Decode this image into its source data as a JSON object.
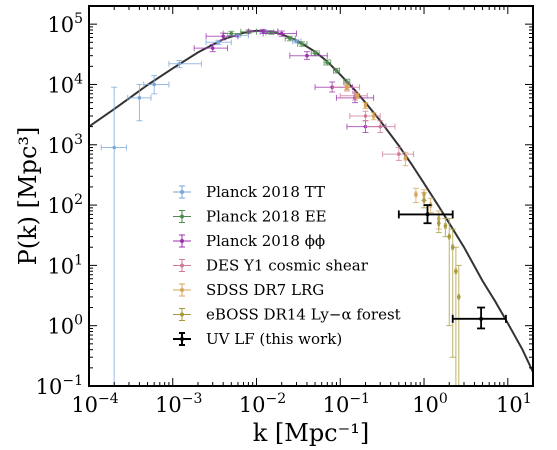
{
  "chart_data": {
    "type": "scatter",
    "xscale": "log",
    "yscale": "log",
    "xlabel": "k [Mpc⁻¹]",
    "ylabel": "P(k) [Mpc³]",
    "xlim": [
      0.0001,
      20
    ],
    "ylim": [
      0.1,
      200000
    ],
    "x_ticks": [
      {
        "value": 0.0001,
        "base": "10",
        "exp": "−4"
      },
      {
        "value": 0.001,
        "base": "10",
        "exp": "−3"
      },
      {
        "value": 0.01,
        "base": "10",
        "exp": "−2"
      },
      {
        "value": 0.1,
        "base": "10",
        "exp": "−1"
      },
      {
        "value": 1,
        "base": "10",
        "exp": "0"
      },
      {
        "value": 10,
        "base": "10",
        "exp": "1"
      }
    ],
    "y_ticks": [
      {
        "value": 0.1,
        "base": "10",
        "exp": "−1"
      },
      {
        "value": 1,
        "base": "10",
        "exp": "0"
      },
      {
        "value": 10,
        "base": "10",
        "exp": "1"
      },
      {
        "value": 100,
        "base": "10",
        "exp": "2"
      },
      {
        "value": 1000,
        "base": "10",
        "exp": "3"
      },
      {
        "value": 10000,
        "base": "10",
        "exp": "4"
      },
      {
        "value": 100000,
        "base": "10",
        "exp": "5"
      }
    ],
    "model_curve": {
      "color": "#333333",
      "points": [
        [
          0.0001,
          2000
        ],
        [
          0.0002,
          3900
        ],
        [
          0.0005,
          9800
        ],
        [
          0.001,
          18500
        ],
        [
          0.002,
          34000
        ],
        [
          0.004,
          56000
        ],
        [
          0.007,
          72000
        ],
        [
          0.01,
          78000
        ],
        [
          0.015,
          75000
        ],
        [
          0.02,
          68000
        ],
        [
          0.03,
          54000
        ],
        [
          0.05,
          35000
        ],
        [
          0.07,
          24000
        ],
        [
          0.1,
          14500
        ],
        [
          0.15,
          8000
        ],
        [
          0.2,
          5000
        ],
        [
          0.3,
          2500
        ],
        [
          0.5,
          970
        ],
        [
          0.7,
          490
        ],
        [
          1,
          230
        ],
        [
          1.5,
          95
        ],
        [
          2,
          50
        ],
        [
          3,
          20
        ],
        [
          5,
          5.5
        ],
        [
          7,
          2.6
        ],
        [
          10,
          1.1
        ],
        [
          15,
          0.4
        ],
        [
          20,
          0.17
        ]
      ]
    },
    "legend": {
      "position": "center-left",
      "entries": [
        {
          "label": "Planck 2018 TT",
          "color": "#7aa6da",
          "marker": "dot"
        },
        {
          "label": "Planck 2018 EE",
          "color": "#4f8a4f",
          "marker": "dot"
        },
        {
          "label": "Planck 2018 ϕϕ",
          "color": "#9b2fae",
          "marker": "dot"
        },
        {
          "label": "DES Y1 cosmic shear",
          "color": "#d07b96",
          "marker": "dot"
        },
        {
          "label": "SDSS DR7 LRG",
          "color": "#d8a45a",
          "marker": "dot"
        },
        {
          "label": "eBOSS DR14 Ly−α forest",
          "color": "#a89a3a",
          "marker": "dot"
        },
        {
          "label": "UV LF (this work)",
          "color": "#000000",
          "marker": "bar"
        }
      ]
    },
    "series": [
      {
        "name": "Planck 2018 TT",
        "color": "#7aa6da",
        "points": [
          {
            "x": 0.0002,
            "y": 900,
            "xerr": [
              0.00014,
              0.00028
            ],
            "yerr": [
              0.1,
              9000
            ]
          },
          {
            "x": 0.0004,
            "y": 6000,
            "xerr": [
              0.00029,
              0.00055
            ],
            "yerr": [
              2500,
              10000
            ]
          },
          {
            "x": 0.0006,
            "y": 10000,
            "xerr": [
              0.00045,
              0.0009
            ],
            "yerr": [
              7000,
              14000
            ]
          },
          {
            "x": 0.0012,
            "y": 22000,
            "xerr": [
              0.0009,
              0.0022
            ],
            "yerr": [
              19000,
              25000
            ]
          },
          {
            "x": 0.0035,
            "y": 50000,
            "xerr": [
              0.0025,
              0.005
            ],
            "yerr": [
              46000,
              54000
            ]
          },
          {
            "x": 0.006,
            "y": 65000,
            "xerr": [
              0.0045,
              0.008
            ],
            "yerr": [
              61000,
              69000
            ]
          },
          {
            "x": 0.013,
            "y": 74000,
            "xerr": [
              0.011,
              0.016
            ],
            "yerr": [
              70000,
              78000
            ]
          },
          {
            "x": 0.03,
            "y": 52000,
            "xerr": [
              0.027,
              0.034
            ],
            "yerr": [
              49000,
              55000
            ]
          }
        ]
      },
      {
        "name": "Planck 2018 EE",
        "color": "#4f8a4f",
        "points": [
          {
            "x": 0.005,
            "y": 70000,
            "xerr": [
              0.004,
              0.0065
            ],
            "yerr": [
              64000,
              76000
            ]
          },
          {
            "x": 0.008,
            "y": 75000,
            "xerr": [
              0.0065,
              0.01
            ],
            "yerr": [
              70000,
              80000
            ]
          },
          {
            "x": 0.015,
            "y": 73000,
            "xerr": [
              0.013,
              0.018
            ],
            "yerr": [
              68000,
              78000
            ]
          },
          {
            "x": 0.025,
            "y": 58000,
            "xerr": [
              0.022,
              0.029
            ],
            "yerr": [
              53000,
              63000
            ]
          },
          {
            "x": 0.035,
            "y": 47000,
            "xerr": [
              0.031,
              0.04
            ],
            "yerr": [
              43000,
              51000
            ]
          },
          {
            "x": 0.05,
            "y": 33000,
            "xerr": [
              0.045,
              0.056
            ],
            "yerr": [
              30000,
              36000
            ]
          },
          {
            "x": 0.07,
            "y": 23000,
            "xerr": [
              0.064,
              0.077
            ],
            "yerr": [
              21000,
              25500
            ]
          },
          {
            "x": 0.09,
            "y": 17000,
            "xerr": [
              0.083,
              0.098
            ],
            "yerr": [
              15500,
              18500
            ]
          },
          {
            "x": 0.12,
            "y": 11000,
            "xerr": [
              0.11,
              0.13
            ],
            "yerr": [
              9800,
              12200
            ]
          }
        ]
      },
      {
        "name": "Planck 2018 ϕϕ",
        "color": "#9b2fae",
        "points": [
          {
            "x": 0.003,
            "y": 40000,
            "xerr": [
              0.0018,
              0.0045
            ],
            "yerr": [
              35000,
              46000
            ]
          },
          {
            "x": 0.004,
            "y": 63000,
            "xerr": [
              0.0025,
              0.006
            ],
            "yerr": [
              55000,
              71000
            ]
          },
          {
            "x": 0.012,
            "y": 76000,
            "xerr": [
              0.008,
              0.018
            ],
            "yerr": [
              70000,
              82000
            ]
          },
          {
            "x": 0.02,
            "y": 70000,
            "xerr": [
              0.012,
              0.03
            ],
            "yerr": [
              63000,
              77000
            ]
          },
          {
            "x": 0.04,
            "y": 30000,
            "xerr": [
              0.025,
              0.07
            ],
            "yerr": [
              26000,
              35000
            ]
          },
          {
            "x": 0.08,
            "y": 9000,
            "xerr": [
              0.05,
              0.14
            ],
            "yerr": [
              7500,
              11000
            ]
          },
          {
            "x": 0.15,
            "y": 6000,
            "xerr": [
              0.09,
              0.25
            ],
            "yerr": [
              5000,
              7200
            ]
          },
          {
            "x": 0.2,
            "y": 2000,
            "xerr": [
              0.12,
              0.35
            ],
            "yerr": [
              1600,
              2500
            ]
          }
        ]
      },
      {
        "name": "DES Y1 cosmic shear",
        "color": "#d07b96",
        "points": [
          {
            "x": 0.12,
            "y": 9000,
            "xerr": [
              0.08,
              0.17
            ],
            "yerr": [
              7800,
              10500
            ]
          },
          {
            "x": 0.15,
            "y": 6500,
            "xerr": [
              0.1,
              0.21
            ],
            "yerr": [
              5500,
              7600
            ]
          },
          {
            "x": 0.2,
            "y": 3000,
            "xerr": [
              0.13,
              0.3
            ],
            "yerr": [
              2500,
              3600
            ]
          },
          {
            "x": 0.3,
            "y": 2000,
            "xerr": [
              0.2,
              0.45
            ],
            "yerr": [
              1600,
              2500
            ]
          },
          {
            "x": 0.5,
            "y": 700,
            "xerr": [
              0.32,
              0.75
            ],
            "yerr": [
              550,
              900
            ]
          }
        ]
      },
      {
        "name": "SDSS DR7 LRG",
        "color": "#d8a45a",
        "points": [
          {
            "x": 0.12,
            "y": 9000,
            "xerr": [
              0.115,
              0.125
            ],
            "yerr": [
              8200,
              9800
            ]
          },
          {
            "x": 0.16,
            "y": 6500,
            "xerr": [
              0.155,
              0.165
            ],
            "yerr": [
              5900,
              7100
            ]
          },
          {
            "x": 0.2,
            "y": 4500,
            "xerr": [
              0.195,
              0.205
            ],
            "yerr": [
              4000,
              5000
            ]
          },
          {
            "x": 0.25,
            "y": 3000,
            "xerr": [
              0.245,
              0.255
            ],
            "yerr": [
              2600,
              3400
            ]
          },
          {
            "x": 0.6,
            "y": 600,
            "xerr": [
              0.58,
              0.62
            ],
            "yerr": [
              450,
              750
            ]
          },
          {
            "x": 0.8,
            "y": 150,
            "xerr": [
              0.78,
              0.82
            ],
            "yerr": [
              110,
              190
            ]
          },
          {
            "x": 1.0,
            "y": 150,
            "xerr": [
              0.98,
              1.02
            ],
            "yerr": [
              120,
              180
            ]
          },
          {
            "x": 1.2,
            "y": 100,
            "xerr": [
              1.18,
              1.22
            ],
            "yerr": [
              75,
              130
            ]
          },
          {
            "x": 1.5,
            "y": 60,
            "xerr": [
              1.47,
              1.53
            ],
            "yerr": [
              40,
              80
            ]
          }
        ]
      },
      {
        "name": "eBOSS DR14 Ly−α forest",
        "color": "#a89a3a",
        "points": [
          {
            "x": 1.0,
            "y": 120,
            "xerr": [
              0.98,
              1.02
            ],
            "yerr": [
              90,
              160
            ]
          },
          {
            "x": 1.5,
            "y": 50,
            "xerr": [
              1.47,
              1.53
            ],
            "yerr": [
              35,
              70
            ]
          },
          {
            "x": 1.8,
            "y": 45,
            "xerr": [
              1.76,
              1.84
            ],
            "yerr": [
              30,
              60
            ]
          },
          {
            "x": 2.0,
            "y": 30,
            "xerr": [
              1.96,
              2.04
            ],
            "yerr": [
              1,
              60
            ]
          },
          {
            "x": 2.2,
            "y": 20,
            "xerr": [
              2.15,
              2.25
            ],
            "yerr": [
              0.3,
              40
            ]
          },
          {
            "x": 2.4,
            "y": 8,
            "xerr": [
              2.35,
              2.45
            ],
            "yerr": [
              0.1,
              20
            ]
          },
          {
            "x": 2.6,
            "y": 3,
            "xerr": [
              2.55,
              2.65
            ],
            "yerr": [
              0.1,
              10
            ]
          }
        ]
      },
      {
        "name": "UV LF (this work)",
        "color": "#000000",
        "points": [
          {
            "x": 1.1,
            "y": 70,
            "xerr": [
              0.5,
              2.2
            ],
            "yerr": [
              50,
              100
            ]
          },
          {
            "x": 4.8,
            "y": 1.3,
            "xerr": [
              2.2,
              9.5
            ],
            "yerr": [
              0.9,
              2.0
            ]
          }
        ]
      }
    ]
  }
}
